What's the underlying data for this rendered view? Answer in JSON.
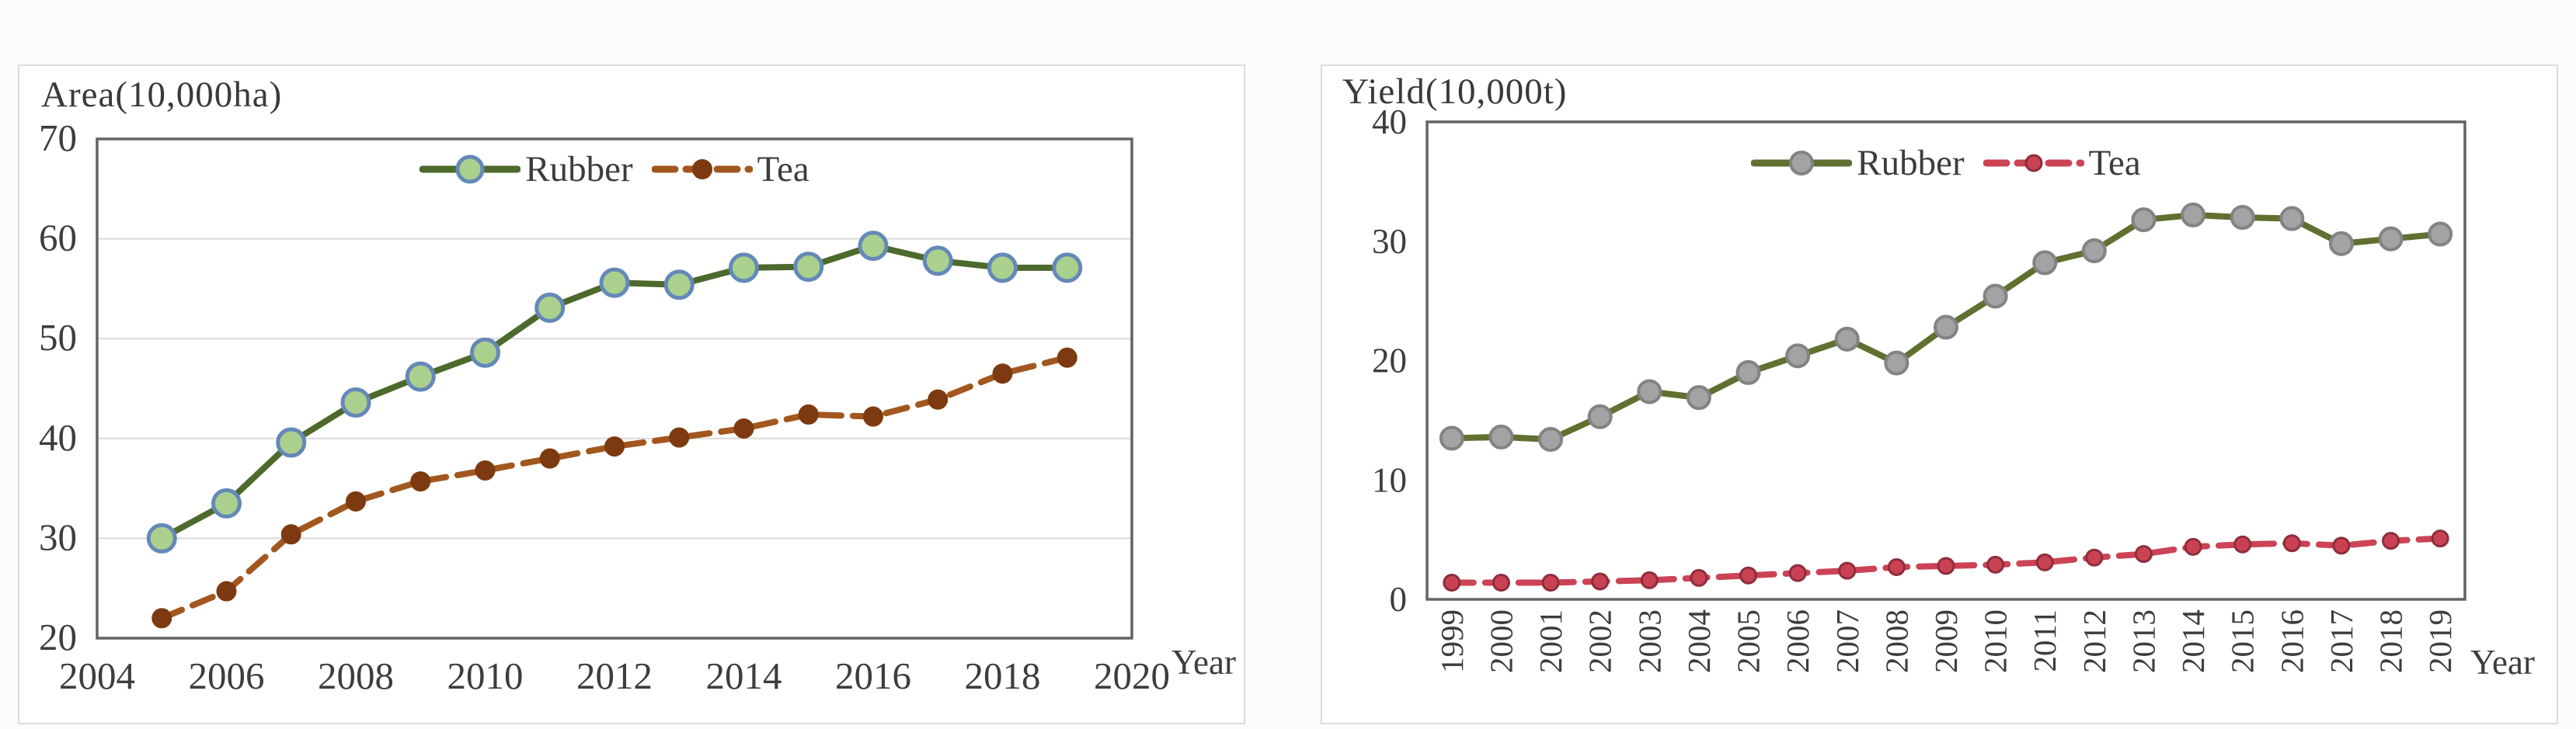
{
  "page": {
    "background": "#fcfcfb",
    "panel_border_color": "#dcdcdc",
    "frame_color": "#636363",
    "grid_color": "#d9d9d9",
    "text_color": "#3d3d3d"
  },
  "chart_data": [
    {
      "id": "area",
      "type": "line",
      "title": "Area(10,000ha)",
      "x_axis_label": "Year",
      "x_type": "linear",
      "x_min": 2004,
      "x_max": 2020,
      "x_ticks": [
        "2004",
        "2006",
        "2008",
        "2010",
        "2012",
        "2014",
        "2016",
        "2018",
        "2020"
      ],
      "y_min": 20,
      "y_max": 70,
      "y_ticks": [
        "70",
        "60",
        "50",
        "40",
        "30",
        "20"
      ],
      "grid": true,
      "legend_position": "top-center-inside",
      "x": [
        2005,
        2006,
        2007,
        2008,
        2009,
        2010,
        2011,
        2012,
        2013,
        2014,
        2015,
        2016,
        2017,
        2018,
        2019
      ],
      "series": [
        {
          "name": "rubber",
          "label": "Rubber",
          "values": [
            30.0,
            33.5,
            39.6,
            43.6,
            46.2,
            48.6,
            53.1,
            55.6,
            55.4,
            57.1,
            57.2,
            59.3,
            57.8,
            57.1,
            57.1
          ],
          "line_color": "#4c6a2c",
          "dash": false,
          "marker": {
            "shape": "circle",
            "fill": "#abd08e",
            "stroke": "#6488b8",
            "r": 17,
            "stroke_width": 5
          }
        },
        {
          "name": "tea",
          "label": "Tea",
          "values": [
            22.0,
            24.7,
            30.4,
            33.7,
            35.7,
            36.8,
            38.0,
            39.2,
            40.1,
            41.0,
            42.4,
            42.2,
            43.9,
            46.5,
            48.1
          ],
          "line_color": "#a2571f",
          "dash": true,
          "marker": {
            "shape": "circle",
            "fill": "#7d3a10",
            "stroke": "#7d3a10",
            "r": 12,
            "stroke_width": 2
          }
        }
      ]
    },
    {
      "id": "yield",
      "type": "line",
      "title": "Yield(10,000t)",
      "x_axis_label": "Year",
      "x_type": "category",
      "categories": [
        "1999",
        "2000",
        "2001",
        "2002",
        "2003",
        "2004",
        "2005",
        "2006",
        "2007",
        "2008",
        "2009",
        "2010",
        "2011",
        "2012",
        "2013",
        "2014",
        "2015",
        "2016",
        "2017",
        "2018",
        "2019"
      ],
      "y_min": 0,
      "y_max": 40,
      "y_ticks": [
        "40",
        "30",
        "20",
        "10",
        "0"
      ],
      "grid": false,
      "x_tick_rotation": -90,
      "legend_position": "top-center-inside",
      "series": [
        {
          "name": "rubber",
          "label": "Rubber",
          "values": [
            13.5,
            13.6,
            13.4,
            15.3,
            17.4,
            16.9,
            19.0,
            20.4,
            21.8,
            19.8,
            22.8,
            25.4,
            28.2,
            29.2,
            31.8,
            32.2,
            32.0,
            31.9,
            29.8,
            30.2,
            30.6
          ],
          "line_color": "#5f7030",
          "dash": false,
          "marker": {
            "shape": "circle",
            "fill": "#a3a3a3",
            "stroke": "#838383",
            "r": 14,
            "stroke_width": 4
          }
        },
        {
          "name": "tea",
          "label": "Tea",
          "values": [
            1.4,
            1.4,
            1.4,
            1.5,
            1.6,
            1.8,
            2.0,
            2.2,
            2.4,
            2.7,
            2.8,
            2.9,
            3.1,
            3.5,
            3.8,
            4.4,
            4.6,
            4.7,
            4.5,
            4.9,
            5.1
          ],
          "line_color": "#cb4355",
          "dash": true,
          "marker": {
            "shape": "circle",
            "fill": "#c94253",
            "stroke": "#8e2d3b",
            "r": 10,
            "stroke_width": 3
          }
        }
      ]
    }
  ]
}
